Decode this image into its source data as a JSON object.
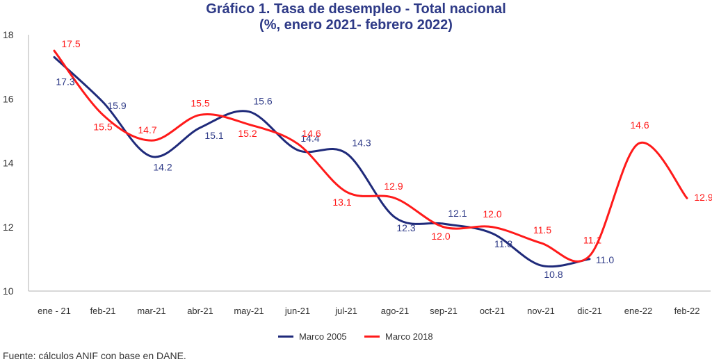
{
  "chart_data": {
    "type": "line",
    "title": "Gráfico 1. Tasa de desempleo - Total nacional",
    "subtitle": "(%, enero 2021- febrero 2022)",
    "xlabel": "",
    "ylabel": "",
    "ylim": [
      10,
      18
    ],
    "yticks": [
      10,
      12,
      14,
      16,
      18
    ],
    "grid": false,
    "smooth": true,
    "legend_position": "bottom",
    "categories": [
      "ene - 21",
      "feb-21",
      "mar-21",
      "abr-21",
      "may-21",
      "jun-21",
      "jul-21",
      "ago-21",
      "sep-21",
      "oct-21",
      "nov-21",
      "dic-21",
      "ene-22",
      "feb-22"
    ],
    "series": [
      {
        "name": "Marco 2005",
        "color": "#1f2a7a",
        "values": [
          17.3,
          15.9,
          14.2,
          15.1,
          15.6,
          14.4,
          14.3,
          12.3,
          12.1,
          11.8,
          10.8,
          11.0,
          null,
          null
        ],
        "labels": [
          "17.3",
          "15.9",
          "14.2",
          "15.1",
          "15.6",
          "14.4",
          "14.3",
          "12.3",
          "12.1",
          "11.8",
          "10.8",
          "11.0",
          "",
          ""
        ]
      },
      {
        "name": "Marco 2018",
        "color": "#ff1a1a",
        "values": [
          17.5,
          15.5,
          14.7,
          15.5,
          15.2,
          14.6,
          13.1,
          12.9,
          12.0,
          12.0,
          11.5,
          11.1,
          14.6,
          12.9
        ],
        "labels": [
          "17.5",
          "15.5",
          "14.7",
          "15.5",
          "15.2",
          "14.6",
          "13.1",
          "12.9",
          "12.0",
          "12.0",
          "11.5",
          "11.1",
          "14.6",
          "12.9"
        ]
      }
    ]
  },
  "source": "Fuente: cálculos ANIF con base en DANE."
}
